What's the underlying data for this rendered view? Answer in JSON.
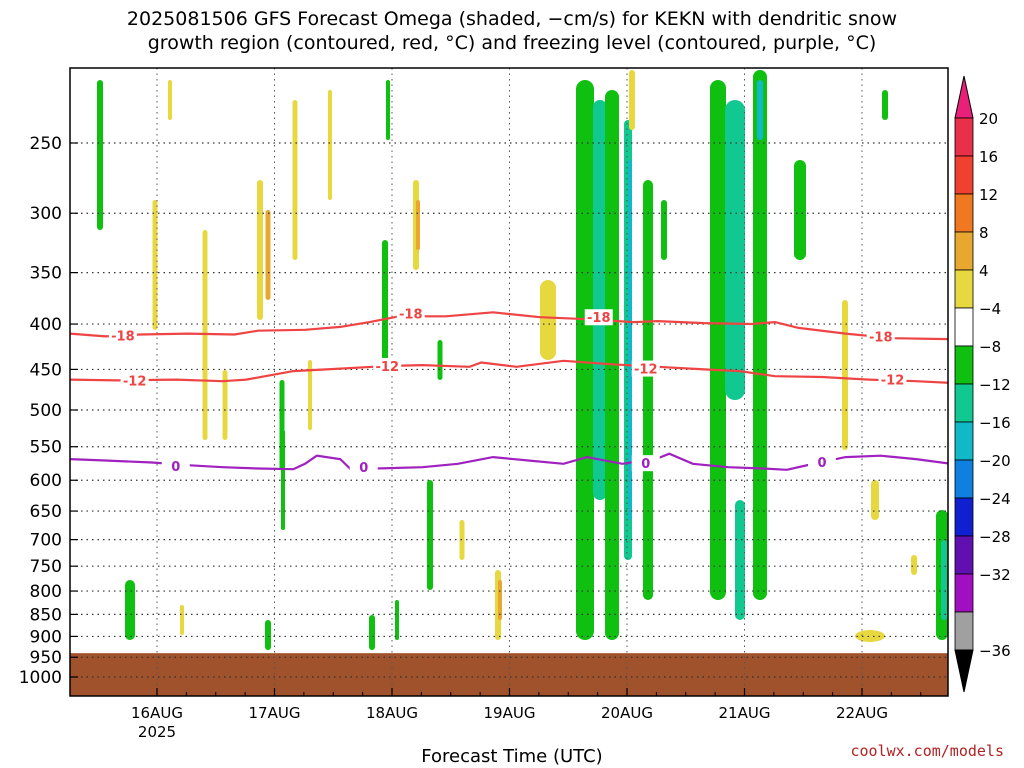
{
  "header": {
    "title_line1": "2025081506 GFS Forecast Omega (shaded, −cm/s) for KEKN with dendritic snow",
    "title_line2": "growth region (contoured, red, °C) and freezing level (contoured, purple, °C)"
  },
  "footer": {
    "credit": "coolwx.com/models"
  },
  "chart_data": {
    "type": "heatmap",
    "xlabel": "Forecast Time (UTC)",
    "ylabel": "",
    "y_axis": {
      "scale": "log-pressure",
      "range": [
        1050,
        200
      ],
      "ticks": [
        "250",
        "300",
        "350",
        "400",
        "450",
        "500",
        "550",
        "600",
        "650",
        "700",
        "750",
        "800",
        "850",
        "900",
        "950",
        "1000"
      ]
    },
    "x_axis": {
      "range": [
        "2025-08-15 06",
        "2025-08-22 18"
      ],
      "ticks": [
        {
          "label": "16AUG",
          "sub": "2025",
          "t": "2025-08-16 00"
        },
        {
          "label": "17AUG",
          "sub": "",
          "t": "2025-08-17 00"
        },
        {
          "label": "18AUG",
          "sub": "",
          "t": "2025-08-18 00"
        },
        {
          "label": "19AUG",
          "sub": "",
          "t": "2025-08-19 00"
        },
        {
          "label": "20AUG",
          "sub": "",
          "t": "2025-08-20 00"
        },
        {
          "label": "21AUG",
          "sub": "",
          "t": "2025-08-21 00"
        },
        {
          "label": "22AUG",
          "sub": "",
          "t": "2025-08-22 00"
        }
      ]
    },
    "grid": true,
    "colorbar": {
      "labels": [
        "20",
        "16",
        "12",
        "8",
        "4",
        "−4",
        "−8",
        "−12",
        "−16",
        "−20",
        "−24",
        "−28",
        "−32",
        "−36"
      ],
      "colors": [
        "#e8304a",
        "#f04030",
        "#f07820",
        "#e8a830",
        "#e8d840",
        "#ffffff",
        "#10c010",
        "#10c890",
        "#10b8c8",
        "#1080e0",
        "#1020d0",
        "#6010b0",
        "#a010c0",
        "#a0a0a0"
      ],
      "top_color": "#e8207a",
      "bottom_color": "#000000"
    },
    "contours": [
      {
        "name": "-18",
        "color": "#ee4444",
        "points": [
          [
            0,
            410
          ],
          [
            0.3,
            413
          ],
          [
            0.6,
            411
          ],
          [
            1.0,
            410
          ],
          [
            1.4,
            411
          ],
          [
            1.6,
            407
          ],
          [
            2.0,
            406
          ],
          [
            2.3,
            403
          ],
          [
            2.55,
            398
          ],
          [
            2.8,
            392
          ],
          [
            3.2,
            392
          ],
          [
            3.6,
            388
          ],
          [
            4.0,
            393
          ],
          [
            4.4,
            395
          ],
          [
            4.8,
            398
          ],
          [
            5.0,
            397
          ],
          [
            5.4,
            399
          ],
          [
            5.8,
            400
          ],
          [
            6.0,
            398
          ],
          [
            6.2,
            404
          ],
          [
            6.6,
            410
          ],
          [
            7.0,
            415
          ],
          [
            7.5,
            416
          ]
        ],
        "labels": [
          {
            "t": 0.45,
            "p": 412
          },
          {
            "t": 2.9,
            "p": 389
          },
          {
            "t": 4.5,
            "p": 393
          },
          {
            "t": 6.9,
            "p": 413
          }
        ]
      },
      {
        "name": "-12",
        "color": "#ee4444",
        "points": [
          [
            0,
            462
          ],
          [
            0.4,
            463
          ],
          [
            0.9,
            462
          ],
          [
            1.3,
            464
          ],
          [
            1.5,
            462
          ],
          [
            1.9,
            452
          ],
          [
            2.3,
            449
          ],
          [
            2.7,
            446
          ],
          [
            3.0,
            445
          ],
          [
            3.4,
            447
          ],
          [
            3.5,
            442
          ],
          [
            3.8,
            447
          ],
          [
            4.2,
            440
          ],
          [
            4.6,
            444
          ],
          [
            5.0,
            447
          ],
          [
            5.4,
            450
          ],
          [
            5.7,
            452
          ],
          [
            6.0,
            458
          ],
          [
            6.4,
            459
          ],
          [
            6.8,
            462
          ],
          [
            7.2,
            464
          ],
          [
            7.5,
            466
          ]
        ],
        "labels": [
          {
            "t": 0.55,
            "p": 463
          },
          {
            "t": 2.7,
            "p": 446
          },
          {
            "t": 4.9,
            "p": 449
          },
          {
            "t": 7.0,
            "p": 462
          }
        ]
      },
      {
        "name": "0",
        "color": "#a020c0",
        "points": [
          [
            0,
            568
          ],
          [
            0.3,
            570
          ],
          [
            0.7,
            573
          ],
          [
            1.0,
            577
          ],
          [
            1.3,
            580
          ],
          [
            1.6,
            582
          ],
          [
            1.9,
            583
          ],
          [
            2.0,
            575
          ],
          [
            2.1,
            563
          ],
          [
            2.3,
            568
          ],
          [
            2.4,
            585
          ],
          [
            2.6,
            582
          ],
          [
            3.0,
            580
          ],
          [
            3.3,
            575
          ],
          [
            3.6,
            565
          ],
          [
            3.9,
            570
          ],
          [
            4.2,
            575
          ],
          [
            4.4,
            565
          ],
          [
            4.7,
            575
          ],
          [
            5.0,
            567
          ],
          [
            5.1,
            560
          ],
          [
            5.3,
            575
          ],
          [
            5.6,
            580
          ],
          [
            5.9,
            582
          ],
          [
            6.1,
            584
          ],
          [
            6.3,
            576
          ],
          [
            6.6,
            565
          ],
          [
            6.9,
            563
          ],
          [
            7.2,
            568
          ],
          [
            7.5,
            575
          ]
        ],
        "labels": [
          {
            "t": 0.9,
            "p": 578
          },
          {
            "t": 2.5,
            "p": 580
          },
          {
            "t": 4.9,
            "p": 574
          },
          {
            "t": 6.4,
            "p": 572
          }
        ]
      }
    ],
    "ground": {
      "from_pressure": 940,
      "color": "#a0522d"
    }
  }
}
